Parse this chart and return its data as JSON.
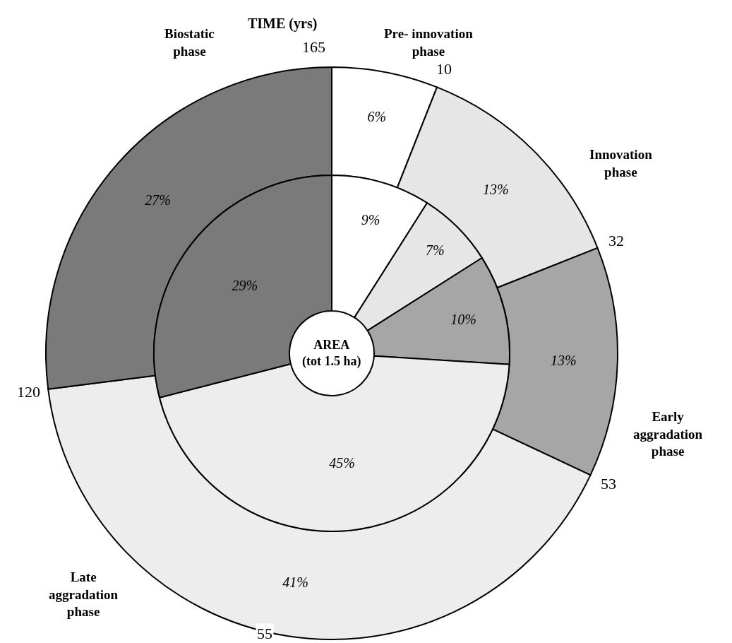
{
  "chart_data": {
    "type": "donut",
    "title": "TIME (yrs)",
    "categories": [
      "Pre- innovation\nphase",
      "Innovation\nphase",
      "Early\naggradation\nphase",
      "Late\naggradation\nphase",
      "Biostatic\nphase"
    ],
    "series": [
      {
        "values": [
          6,
          13,
          13,
          41,
          27
        ],
        "value_labels": [
          "6%",
          "13%",
          "13%",
          "41%",
          "27%"
        ],
        "colors": [
          "#ffffff",
          "#e6e6e6",
          "#a6a6a6",
          "#ededed",
          "#7a7a7a"
        ]
      },
      {
        "values": [
          9,
          7,
          10,
          45,
          29
        ],
        "value_labels": [
          "9%",
          "7%",
          "10%",
          "45%",
          "29%"
        ],
        "colors": [
          "#ffffff",
          "#e6e6e6",
          "#a6a6a6",
          "#ededed",
          "#7a7a7a"
        ]
      }
    ],
    "annotations": [
      "10",
      "32",
      "53",
      "120",
      "165",
      "55",
      "AREA\n(tot 1.5 ha)"
    ]
  }
}
